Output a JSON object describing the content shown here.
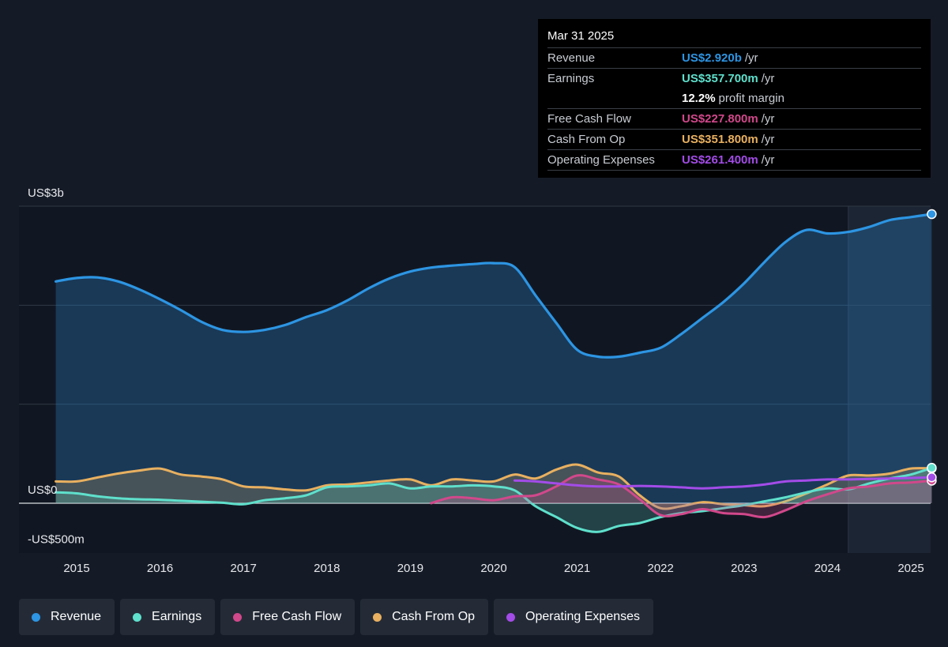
{
  "colors": {
    "revenue": "#2d95e3",
    "earnings": "#5fe0cc",
    "fcf": "#d1488b",
    "cfo": "#e8b060",
    "opex": "#a34ce8"
  },
  "tooltip": {
    "date": "Mar 31 2025",
    "rows": [
      {
        "label": "Revenue",
        "value": "US$2.920b",
        "unit": "/yr",
        "color": "#2d95e3"
      },
      {
        "label": "Earnings",
        "value": "US$357.700m",
        "unit": "/yr",
        "color": "#5fe0cc"
      },
      {
        "label": "",
        "value": "12.2%",
        "unit": "profit margin",
        "color": "#ffffff"
      },
      {
        "label": "Free Cash Flow",
        "value": "US$227.800m",
        "unit": "/yr",
        "color": "#d1488b"
      },
      {
        "label": "Cash From Op",
        "value": "US$351.800m",
        "unit": "/yr",
        "color": "#e8b060"
      },
      {
        "label": "Operating Expenses",
        "value": "US$261.400m",
        "unit": "/yr",
        "color": "#a34ce8"
      }
    ]
  },
  "legend": [
    {
      "label": "Revenue",
      "color": "#2d95e3"
    },
    {
      "label": "Earnings",
      "color": "#5fe0cc"
    },
    {
      "label": "Free Cash Flow",
      "color": "#d1488b"
    },
    {
      "label": "Cash From Op",
      "color": "#e8b060"
    },
    {
      "label": "Operating Expenses",
      "color": "#a34ce8"
    }
  ],
  "chart_data": {
    "type": "area",
    "y_unit": "US$ millions",
    "ylim": [
      -500,
      3000
    ],
    "y_tick_labels": [
      {
        "value": 3000,
        "label": "US$3b"
      },
      {
        "value": 0,
        "label": "US$0"
      },
      {
        "value": -500,
        "label": "-US$500m"
      }
    ],
    "y_gridlines": [
      3000,
      2000,
      1000,
      0
    ],
    "xlim": [
      2014.45,
      2025.25
    ],
    "x_ticks": [
      2015,
      2016,
      2017,
      2018,
      2019,
      2020,
      2021,
      2022,
      2023,
      2024,
      2025
    ],
    "forecast_shade_start": 2024.25,
    "grid": true,
    "legend_position": "bottom",
    "series": [
      {
        "name": "Revenue",
        "key": "revenue",
        "fill": true,
        "points": [
          [
            2014.75,
            2240
          ],
          [
            2015.0,
            2275
          ],
          [
            2015.25,
            2280
          ],
          [
            2015.5,
            2240
          ],
          [
            2015.75,
            2160
          ],
          [
            2016.0,
            2060
          ],
          [
            2016.25,
            1950
          ],
          [
            2016.5,
            1830
          ],
          [
            2016.75,
            1750
          ],
          [
            2017.0,
            1730
          ],
          [
            2017.25,
            1750
          ],
          [
            2017.5,
            1800
          ],
          [
            2017.75,
            1880
          ],
          [
            2018.0,
            1950
          ],
          [
            2018.25,
            2050
          ],
          [
            2018.5,
            2170
          ],
          [
            2018.75,
            2270
          ],
          [
            2019.0,
            2340
          ],
          [
            2019.25,
            2380
          ],
          [
            2019.5,
            2400
          ],
          [
            2019.75,
            2415
          ],
          [
            2020.0,
            2425
          ],
          [
            2020.25,
            2385
          ],
          [
            2020.5,
            2100
          ],
          [
            2020.75,
            1820
          ],
          [
            2021.0,
            1550
          ],
          [
            2021.25,
            1480
          ],
          [
            2021.5,
            1480
          ],
          [
            2021.75,
            1520
          ],
          [
            2022.0,
            1570
          ],
          [
            2022.25,
            1710
          ],
          [
            2022.5,
            1870
          ],
          [
            2022.75,
            2030
          ],
          [
            2023.0,
            2220
          ],
          [
            2023.25,
            2440
          ],
          [
            2023.5,
            2640
          ],
          [
            2023.75,
            2760
          ],
          [
            2024.0,
            2725
          ],
          [
            2024.25,
            2740
          ],
          [
            2024.5,
            2790
          ],
          [
            2024.75,
            2860
          ],
          [
            2025.0,
            2890
          ],
          [
            2025.25,
            2920
          ]
        ]
      },
      {
        "name": "Earnings",
        "key": "earnings",
        "fill": true,
        "points": [
          [
            2014.75,
            110
          ],
          [
            2015.0,
            100
          ],
          [
            2015.25,
            70
          ],
          [
            2015.5,
            50
          ],
          [
            2015.75,
            40
          ],
          [
            2016.0,
            35
          ],
          [
            2016.25,
            25
          ],
          [
            2016.5,
            15
          ],
          [
            2016.75,
            5
          ],
          [
            2017.0,
            -10
          ],
          [
            2017.25,
            30
          ],
          [
            2017.5,
            50
          ],
          [
            2017.75,
            80
          ],
          [
            2018.0,
            160
          ],
          [
            2018.25,
            170
          ],
          [
            2018.5,
            180
          ],
          [
            2018.75,
            200
          ],
          [
            2019.0,
            150
          ],
          [
            2019.25,
            170
          ],
          [
            2019.5,
            170
          ],
          [
            2019.75,
            180
          ],
          [
            2020.0,
            170
          ],
          [
            2020.25,
            130
          ],
          [
            2020.5,
            -30
          ],
          [
            2020.75,
            -140
          ],
          [
            2021.0,
            -250
          ],
          [
            2021.25,
            -290
          ],
          [
            2021.5,
            -230
          ],
          [
            2021.75,
            -200
          ],
          [
            2022.0,
            -140
          ],
          [
            2022.25,
            -100
          ],
          [
            2022.5,
            -80
          ],
          [
            2022.75,
            -50
          ],
          [
            2023.0,
            -20
          ],
          [
            2023.25,
            20
          ],
          [
            2023.5,
            60
          ],
          [
            2023.75,
            110
          ],
          [
            2024.0,
            150
          ],
          [
            2024.25,
            140
          ],
          [
            2024.5,
            200
          ],
          [
            2024.75,
            250
          ],
          [
            2025.0,
            290
          ],
          [
            2025.25,
            357.7
          ]
        ]
      },
      {
        "name": "Free Cash Flow",
        "key": "fcf",
        "fill": true,
        "points": [
          [
            2019.25,
            0
          ],
          [
            2019.5,
            60
          ],
          [
            2019.75,
            50
          ],
          [
            2020.0,
            30
          ],
          [
            2020.25,
            70
          ],
          [
            2020.5,
            80
          ],
          [
            2020.75,
            170
          ],
          [
            2021.0,
            280
          ],
          [
            2021.25,
            240
          ],
          [
            2021.5,
            190
          ],
          [
            2021.75,
            40
          ],
          [
            2022.0,
            -120
          ],
          [
            2022.25,
            -110
          ],
          [
            2022.5,
            -60
          ],
          [
            2022.75,
            -100
          ],
          [
            2023.0,
            -110
          ],
          [
            2023.25,
            -140
          ],
          [
            2023.5,
            -70
          ],
          [
            2023.75,
            20
          ],
          [
            2024.0,
            90
          ],
          [
            2024.25,
            150
          ],
          [
            2024.5,
            170
          ],
          [
            2024.75,
            200
          ],
          [
            2025.0,
            210
          ],
          [
            2025.25,
            227.8
          ]
        ]
      },
      {
        "name": "Cash From Op",
        "key": "cfo",
        "fill": true,
        "points": [
          [
            2014.75,
            220
          ],
          [
            2015.0,
            220
          ],
          [
            2015.25,
            260
          ],
          [
            2015.5,
            300
          ],
          [
            2015.75,
            330
          ],
          [
            2016.0,
            350
          ],
          [
            2016.25,
            290
          ],
          [
            2016.5,
            270
          ],
          [
            2016.75,
            240
          ],
          [
            2017.0,
            170
          ],
          [
            2017.25,
            160
          ],
          [
            2017.5,
            140
          ],
          [
            2017.75,
            130
          ],
          [
            2018.0,
            180
          ],
          [
            2018.25,
            190
          ],
          [
            2018.5,
            210
          ],
          [
            2018.75,
            230
          ],
          [
            2019.0,
            240
          ],
          [
            2019.25,
            180
          ],
          [
            2019.5,
            240
          ],
          [
            2019.75,
            230
          ],
          [
            2020.0,
            220
          ],
          [
            2020.25,
            290
          ],
          [
            2020.5,
            250
          ],
          [
            2020.75,
            340
          ],
          [
            2021.0,
            390
          ],
          [
            2021.25,
            310
          ],
          [
            2021.5,
            270
          ],
          [
            2021.75,
            80
          ],
          [
            2022.0,
            -50
          ],
          [
            2022.25,
            -30
          ],
          [
            2022.5,
            10
          ],
          [
            2022.75,
            -10
          ],
          [
            2023.0,
            -20
          ],
          [
            2023.25,
            -30
          ],
          [
            2023.5,
            20
          ],
          [
            2023.75,
            100
          ],
          [
            2024.0,
            190
          ],
          [
            2024.25,
            280
          ],
          [
            2024.5,
            280
          ],
          [
            2024.75,
            300
          ],
          [
            2025.0,
            350
          ],
          [
            2025.25,
            351.8
          ]
        ]
      },
      {
        "name": "Operating Expenses",
        "key": "opex",
        "fill": false,
        "points": [
          [
            2020.25,
            230
          ],
          [
            2020.5,
            220
          ],
          [
            2020.75,
            200
          ],
          [
            2021.0,
            180
          ],
          [
            2021.25,
            170
          ],
          [
            2021.5,
            170
          ],
          [
            2021.75,
            175
          ],
          [
            2022.0,
            170
          ],
          [
            2022.25,
            160
          ],
          [
            2022.5,
            150
          ],
          [
            2022.75,
            160
          ],
          [
            2023.0,
            170
          ],
          [
            2023.25,
            190
          ],
          [
            2023.5,
            220
          ],
          [
            2023.75,
            230
          ],
          [
            2024.0,
            240
          ],
          [
            2024.25,
            240
          ],
          [
            2024.5,
            245
          ],
          [
            2024.75,
            250
          ],
          [
            2025.0,
            255
          ],
          [
            2025.25,
            261.4
          ]
        ]
      }
    ]
  }
}
